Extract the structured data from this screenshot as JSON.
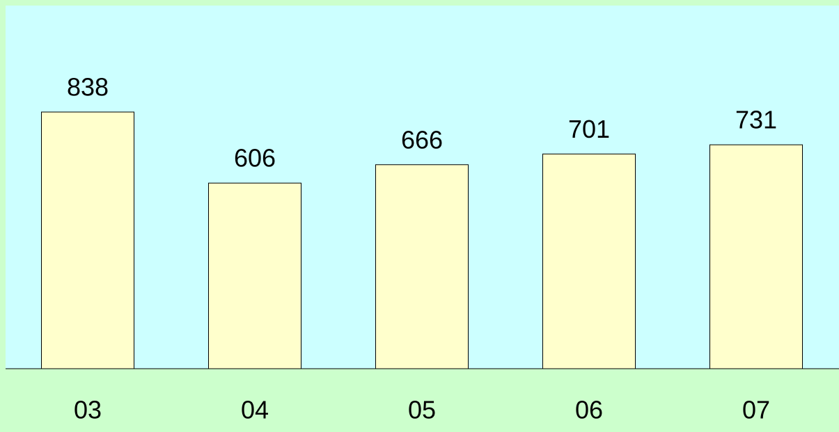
{
  "chart_data": {
    "type": "bar",
    "categories": [
      "03",
      "04",
      "05",
      "06",
      "07"
    ],
    "values": [
      838,
      606,
      666,
      701,
      731
    ],
    "color": "#ffffcc"
  }
}
